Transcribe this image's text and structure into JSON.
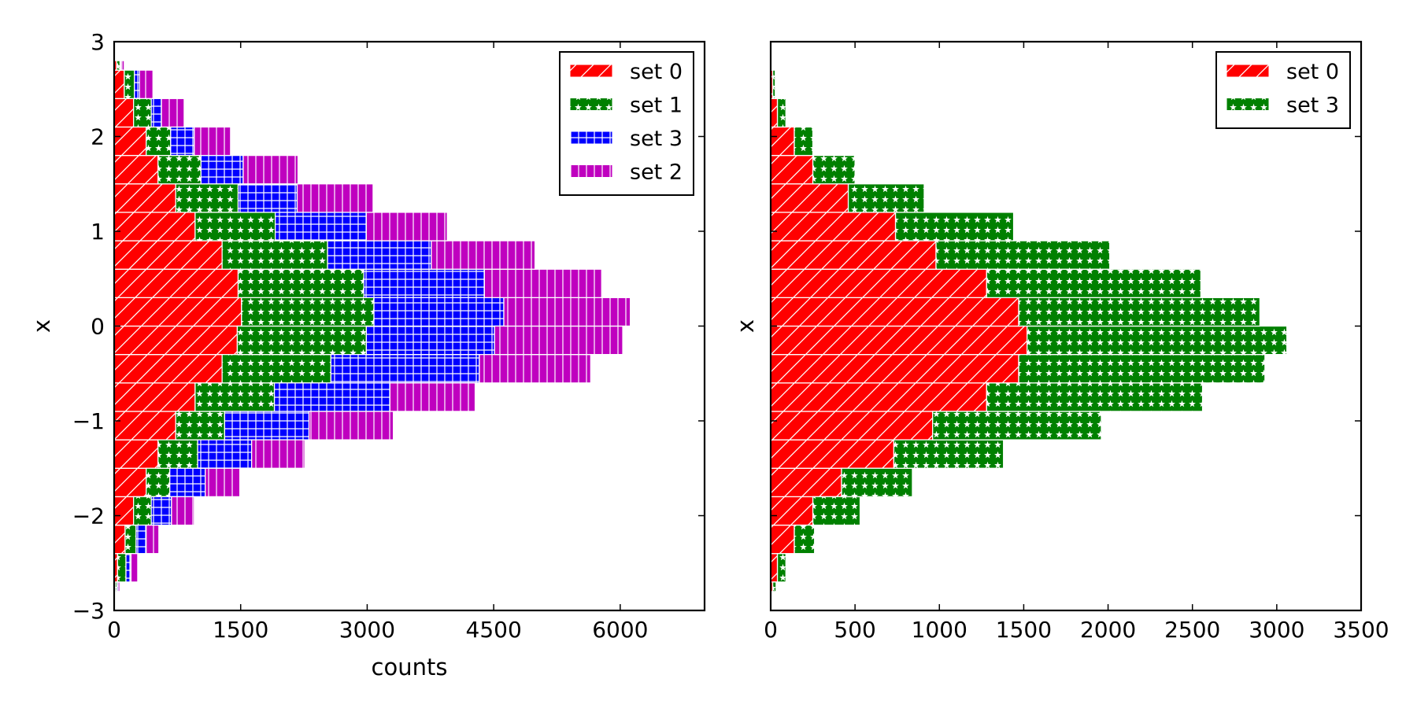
{
  "chart_data": [
    {
      "type": "bar",
      "orientation": "horizontal",
      "stacked": true,
      "histtype": "stepfilled",
      "title": "",
      "xlabel": "counts",
      "ylabel": "x",
      "xlim": [
        0,
        7000
      ],
      "ylim": [
        -3,
        3
      ],
      "xticks": [
        0,
        1500,
        3000,
        4500,
        6000
      ],
      "xtick_labels": [
        "0",
        "1500",
        "3000",
        "4500",
        "6000"
      ],
      "yticks": [
        -3,
        -2,
        -1,
        0,
        1,
        2,
        3
      ],
      "ytick_labels": [
        "−3",
        "−2",
        "−1",
        "0",
        "1",
        "2",
        "3"
      ],
      "legend_position": "top-right",
      "bin_edges": [
        -2.8,
        -2.7,
        -2.4,
        -2.1,
        -1.8,
        -1.5,
        -1.2,
        -0.9,
        -0.6,
        -0.3,
        0.0,
        0.3,
        0.6,
        0.9,
        1.2,
        1.5,
        1.8,
        2.1,
        2.4,
        2.7,
        2.8
      ],
      "series": [
        {
          "name": "set 0",
          "color": "#ff0000",
          "hatch": "diagonal",
          "values": [
            12,
            40,
            130,
            230,
            380,
            520,
            730,
            960,
            1280,
            1460,
            1510,
            1470,
            1280,
            960,
            730,
            520,
            380,
            230,
            120,
            30
          ]
        },
        {
          "name": "set 1",
          "color": "#008000",
          "hatch": "stars",
          "values": [
            20,
            100,
            130,
            210,
            280,
            470,
            580,
            940,
            1290,
            1530,
            1570,
            1490,
            1250,
            950,
            740,
            510,
            290,
            210,
            120,
            40
          ]
        },
        {
          "name": "set 3",
          "color": "#0000ff",
          "hatch": "grid",
          "values": [
            15,
            60,
            120,
            240,
            420,
            640,
            1000,
            1370,
            1760,
            1520,
            1540,
            1430,
            1230,
            1080,
            700,
            500,
            280,
            120,
            60,
            10
          ]
        },
        {
          "name": "set 2",
          "color": "#bf00bf",
          "hatch": "vertical",
          "values": [
            20,
            80,
            150,
            270,
            410,
            630,
            1000,
            1010,
            1320,
            1520,
            1500,
            1390,
            1230,
            960,
            900,
            650,
            430,
            270,
            160,
            40
          ]
        }
      ]
    },
    {
      "type": "bar",
      "orientation": "horizontal",
      "stacked": true,
      "histtype": "stepfilled",
      "title": "",
      "xlabel": "",
      "ylabel": "x",
      "xlim": [
        0,
        3500
      ],
      "ylim": [
        -3,
        3
      ],
      "xticks": [
        0,
        500,
        1000,
        1500,
        2000,
        2500,
        3000,
        3500
      ],
      "xtick_labels": [
        "0",
        "500",
        "1000",
        "1500",
        "2000",
        "2500",
        "3000",
        "3500"
      ],
      "yticks": [
        -3,
        -2,
        -1,
        0,
        1,
        2,
        3
      ],
      "ytick_labels": [
        "",
        "",
        "",
        "",
        "",
        "",
        ""
      ],
      "legend_position": "top-right",
      "bin_edges": [
        -2.8,
        -2.7,
        -2.4,
        -2.1,
        -1.8,
        -1.5,
        -1.2,
        -0.9,
        -0.6,
        -0.3,
        0.0,
        0.3,
        0.6,
        0.9,
        1.2,
        1.5,
        1.8,
        2.1,
        2.4,
        2.7,
        2.8
      ],
      "series": [
        {
          "name": "set 0",
          "color": "#ff0000",
          "hatch": "diagonal",
          "values": [
            12,
            40,
            140,
            250,
            420,
            730,
            960,
            1280,
            1470,
            1520,
            1470,
            1280,
            980,
            740,
            460,
            250,
            140,
            40,
            12,
            5
          ]
        },
        {
          "name": "set 3",
          "color": "#008000",
          "hatch": "stars",
          "values": [
            20,
            50,
            120,
            280,
            420,
            650,
            1000,
            1280,
            1460,
            1540,
            1430,
            1270,
            1030,
            700,
            450,
            250,
            110,
            50,
            15,
            5
          ]
        }
      ]
    }
  ]
}
